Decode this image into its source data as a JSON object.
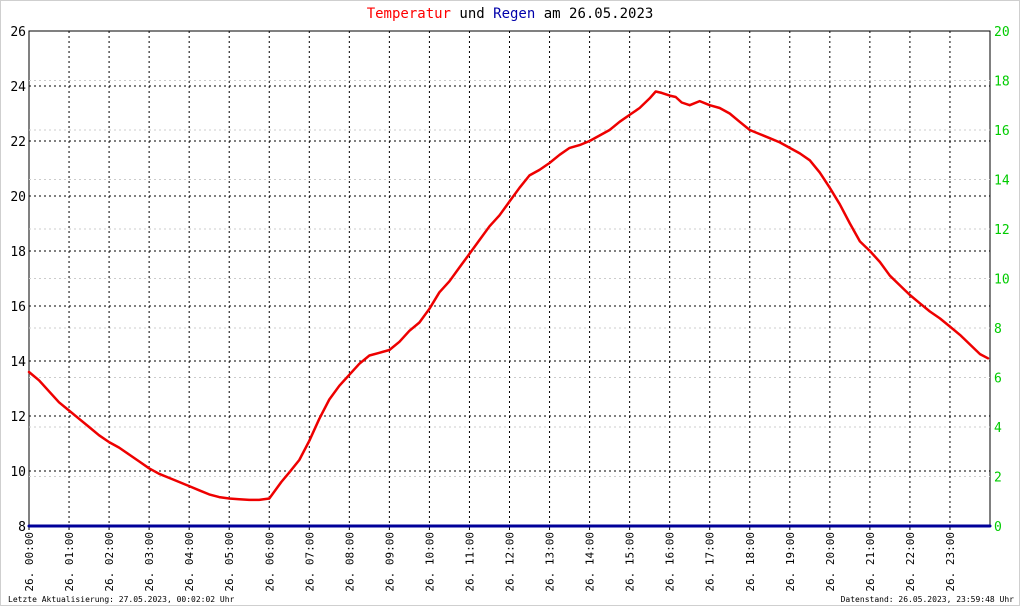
{
  "chart_data": {
    "type": "line",
    "title_parts": [
      {
        "text": "Temperatur",
        "color": "#ff0000"
      },
      {
        "text": " und ",
        "color": "#000000"
      },
      {
        "text": "Regen",
        "color": "#0000aa"
      },
      {
        "text": " am 26.05.2023",
        "color": "#000000"
      }
    ],
    "x_tick_labels": [
      "26. 00:00",
      "26. 01:00",
      "26. 02:00",
      "26. 03:00",
      "26. 04:00",
      "26. 05:00",
      "26. 06:00",
      "26. 07:00",
      "26. 08:00",
      "26. 09:00",
      "26. 10:00",
      "26. 11:00",
      "26. 12:00",
      "26. 13:00",
      "26. 14:00",
      "26. 15:00",
      "26. 16:00",
      "26. 17:00",
      "26. 18:00",
      "26. 19:00",
      "26. 20:00",
      "26. 21:00",
      "26. 22:00",
      "26. 23:00"
    ],
    "x_hours": [
      0,
      1,
      2,
      3,
      4,
      5,
      6,
      7,
      8,
      9,
      10,
      11,
      12,
      13,
      14,
      15,
      16,
      17,
      18,
      19,
      20,
      21,
      22,
      23
    ],
    "xlim": [
      0,
      24
    ],
    "y_left": {
      "min": 8,
      "max": 26,
      "ticks": [
        8,
        10,
        12,
        14,
        16,
        18,
        20,
        22,
        24,
        26
      ],
      "color": "#000000"
    },
    "y_right": {
      "min": 0,
      "max": 20,
      "ticks": [
        0,
        2,
        4,
        6,
        8,
        10,
        12,
        14,
        16,
        18,
        20
      ],
      "labels": [
        "0",
        "2",
        "4",
        "6",
        "8",
        "10",
        "12",
        "14",
        "16",
        "18",
        "20"
      ],
      "color": "#00cc00"
    },
    "grid": true,
    "series": [
      {
        "color": "#ee0000",
        "axis": "left",
        "x": [
          0.0,
          0.25,
          0.5,
          0.75,
          1.0,
          1.25,
          1.5,
          1.75,
          2.0,
          2.25,
          2.5,
          2.75,
          3.0,
          3.25,
          3.5,
          3.75,
          4.0,
          4.25,
          4.5,
          4.75,
          5.0,
          5.25,
          5.5,
          5.75,
          6.0,
          6.15,
          6.3,
          6.5,
          6.75,
          7.0,
          7.25,
          7.5,
          7.75,
          8.0,
          8.25,
          8.5,
          8.75,
          9.0,
          9.25,
          9.5,
          9.75,
          10.0,
          10.25,
          10.5,
          10.75,
          11.0,
          11.25,
          11.5,
          11.75,
          12.0,
          12.25,
          12.5,
          12.75,
          13.0,
          13.25,
          13.5,
          13.75,
          14.0,
          14.25,
          14.5,
          14.75,
          15.0,
          15.25,
          15.5,
          15.65,
          15.8,
          16.0,
          16.15,
          16.3,
          16.5,
          16.75,
          17.0,
          17.25,
          17.5,
          17.75,
          18.0,
          18.25,
          18.5,
          18.75,
          19.0,
          19.25,
          19.5,
          19.75,
          20.0,
          20.25,
          20.5,
          20.75,
          21.0,
          21.25,
          21.5,
          21.75,
          22.0,
          22.25,
          22.5,
          22.75,
          23.0,
          23.25,
          23.5,
          23.75,
          23.95
        ],
        "y": [
          13.6,
          13.3,
          12.9,
          12.5,
          12.2,
          11.9,
          11.6,
          11.3,
          11.05,
          10.85,
          10.6,
          10.35,
          10.1,
          9.9,
          9.75,
          9.6,
          9.45,
          9.3,
          9.15,
          9.05,
          9.0,
          8.97,
          8.95,
          8.95,
          9.0,
          9.3,
          9.6,
          9.95,
          10.4,
          11.1,
          11.9,
          12.6,
          13.1,
          13.5,
          13.9,
          14.2,
          14.3,
          14.4,
          14.7,
          15.1,
          15.4,
          15.9,
          16.5,
          16.9,
          17.4,
          17.9,
          18.4,
          18.9,
          19.3,
          19.8,
          20.3,
          20.75,
          20.95,
          21.2,
          21.5,
          21.75,
          21.85,
          22.0,
          22.2,
          22.4,
          22.7,
          22.95,
          23.2,
          23.55,
          23.8,
          23.75,
          23.65,
          23.6,
          23.4,
          23.3,
          23.45,
          23.3,
          23.2,
          23.0,
          22.7,
          22.4,
          22.25,
          22.1,
          21.95,
          21.75,
          21.55,
          21.3,
          20.85,
          20.3,
          19.7,
          19.0,
          18.35,
          18.0,
          17.6,
          17.1,
          16.75,
          16.4,
          16.1,
          15.8,
          15.55,
          15.25,
          14.95,
          14.6,
          14.25,
          14.1
        ]
      },
      {
        "color": "#000099",
        "axis": "right",
        "x": [
          0,
          24
        ],
        "y": [
          0,
          0
        ]
      }
    ]
  },
  "footer": {
    "left": "Letzte Aktualisierung: 27.05.2023, 00:02:02 Uhr",
    "right": "Datenstand: 26.05.2023, 23:59:48 Uhr"
  }
}
